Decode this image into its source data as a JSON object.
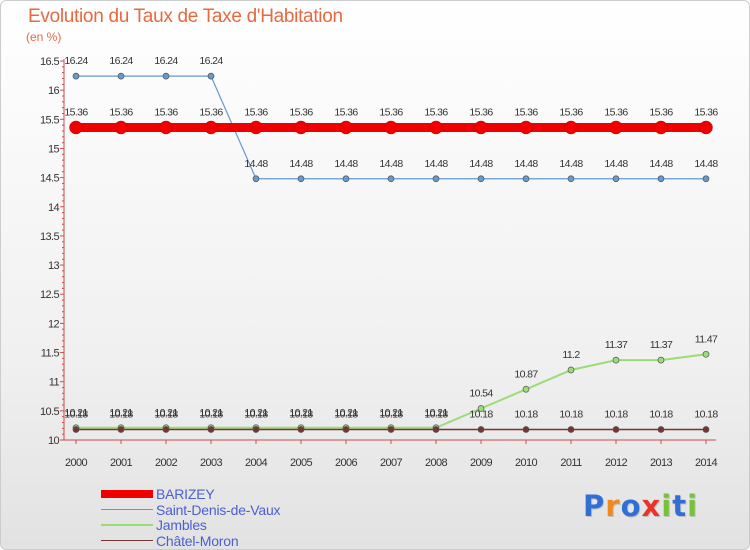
{
  "chart_data": {
    "type": "line",
    "title": "Evolution du Taux de Taxe d'Habitation",
    "ylabel": "(en %)",
    "xlabel": "",
    "ylim": [
      10,
      16.5
    ],
    "y_ticks": [
      "10",
      "10.5",
      "11",
      "11.5",
      "12",
      "12.5",
      "13",
      "13.5",
      "14",
      "14.5",
      "15",
      "15.5",
      "16",
      "16.5"
    ],
    "categories": [
      "2000",
      "2001",
      "2002",
      "2003",
      "2004",
      "2005",
      "2006",
      "2007",
      "2008",
      "2009",
      "2010",
      "2011",
      "2012",
      "2013",
      "2014"
    ],
    "series": [
      {
        "name": "BARIZEY",
        "color": "#ee0000",
        "values": [
          15.36,
          15.36,
          15.36,
          15.36,
          15.36,
          15.36,
          15.36,
          15.36,
          15.36,
          15.36,
          15.36,
          15.36,
          15.36,
          15.36,
          15.36
        ],
        "labels": [
          "15.36",
          "15.36",
          "15.36",
          "15.36",
          "15.36",
          "15.36",
          "15.36",
          "15.36",
          "15.36",
          "15.36",
          "15.36",
          "15.36",
          "15.36",
          "15.36",
          "15.36"
        ]
      },
      {
        "name": "Saint-Denis-de-Vaux",
        "color": "#6699cc",
        "values": [
          16.24,
          16.24,
          16.24,
          16.24,
          14.48,
          14.48,
          14.48,
          14.48,
          14.48,
          14.48,
          14.48,
          14.48,
          14.48,
          14.48,
          14.48
        ],
        "labels": [
          "16.24",
          "16.24",
          "16.24",
          "16.24",
          "14.48",
          "14.48",
          "14.48",
          "14.48",
          "14.48",
          "14.48",
          "14.48",
          "14.48",
          "14.48",
          "14.48",
          "14.48"
        ]
      },
      {
        "name": "Jambles",
        "color": "#99dd77",
        "values": [
          10.21,
          10.21,
          10.21,
          10.21,
          10.21,
          10.21,
          10.21,
          10.21,
          10.21,
          10.54,
          10.87,
          11.2,
          11.37,
          11.37,
          11.47
        ],
        "labels": [
          "10.21",
          "10.21",
          "10.21",
          "10.21",
          "10.21",
          "10.21",
          "10.21",
          "10.21",
          "10.21",
          "10.54",
          "10.87",
          "11.2",
          "11.37",
          "11.37",
          "11.47"
        ]
      },
      {
        "name": "Châtel-Moron",
        "color": "#7a3333",
        "values": [
          10.18,
          10.18,
          10.18,
          10.18,
          10.18,
          10.18,
          10.18,
          10.18,
          10.18,
          10.18,
          10.18,
          10.18,
          10.18,
          10.18,
          10.18
        ],
        "labels": [
          "10.18",
          "10.18",
          "10.18",
          "10.18",
          "10.18",
          "10.18",
          "10.18",
          "10.18",
          "10.18",
          "10.18",
          "10.18",
          "10.18",
          "10.18",
          "10.18",
          "10.18"
        ]
      }
    ],
    "legend_position": "bottom-left",
    "grid": false
  },
  "brand": {
    "letters": [
      "P",
      "r",
      "o",
      "x",
      "i",
      "t",
      "i"
    ],
    "colors": [
      "#2f6fd6",
      "#f08a1f",
      "#2f6fd6",
      "#e8352a",
      "#78c23a",
      "#2f6fd6",
      "#78c23a"
    ]
  }
}
